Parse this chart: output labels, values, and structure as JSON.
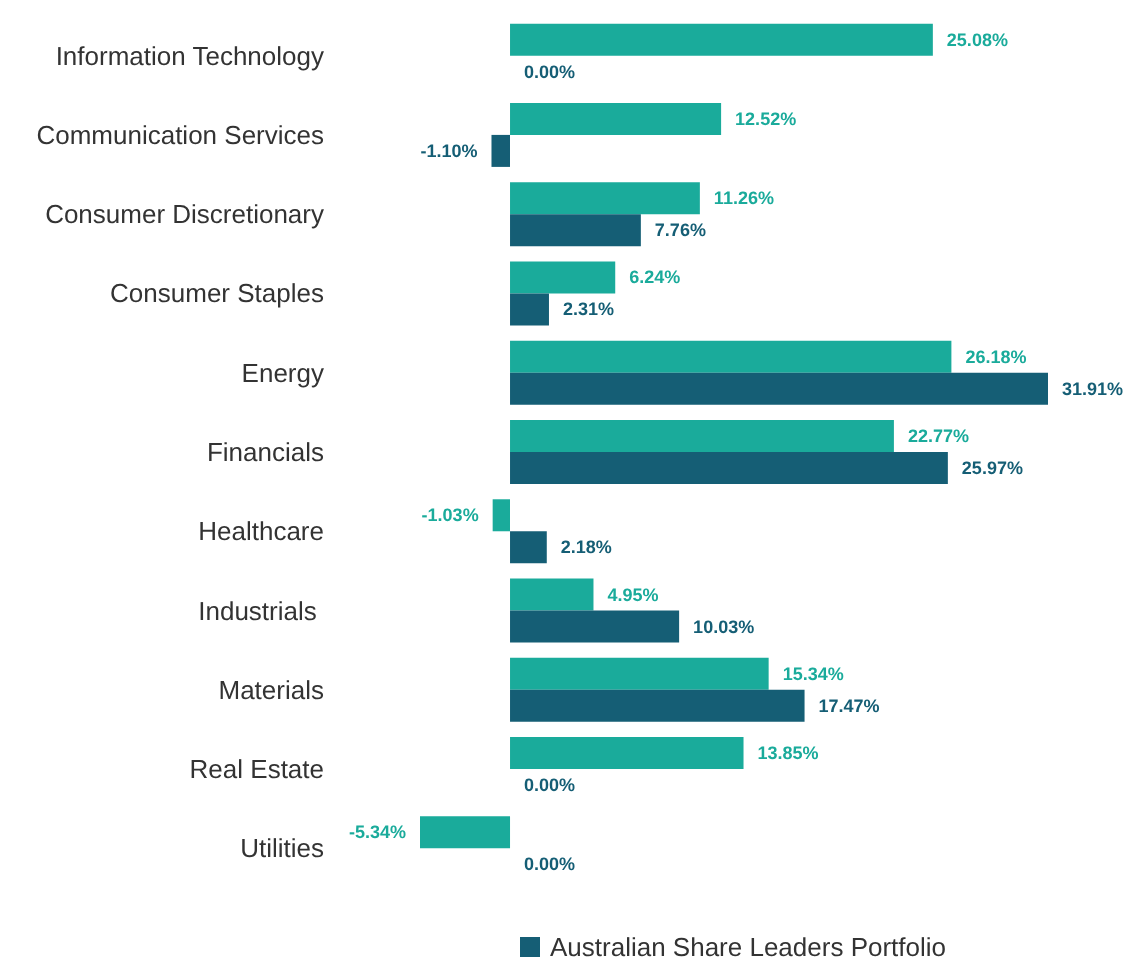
{
  "chart_data": {
    "type": "bar",
    "orientation": "horizontal",
    "data_labels": true,
    "legend": "bottom",
    "grid": false,
    "categories": [
      "Information Technology",
      "Communication Services",
      "Consumer Discretionary",
      "Consumer Staples",
      "Energy",
      "Financials",
      "Healthcare",
      "Industrials ",
      "Materials",
      "Real Estate",
      "Utilities"
    ],
    "series": [
      {
        "color": "#1aab9b",
        "values": [
          25.08,
          12.52,
          11.26,
          6.24,
          26.18,
          22.77,
          -1.03,
          4.95,
          15.34,
          13.85,
          -5.34
        ],
        "value_labels": [
          "25.08%",
          "12.52%",
          "11.26%",
          "6.24%",
          "26.18%",
          "22.77%",
          "-1.03%",
          "4.95%",
          "15.34%",
          "13.85%",
          "-5.34%"
        ]
      },
      {
        "name": "Australian Share Leaders Portfolio",
        "color": "#155e75",
        "values": [
          0,
          -1.1,
          7.76,
          2.31,
          31.91,
          25.97,
          2.18,
          10.03,
          17.47,
          0,
          0
        ],
        "value_labels": [
          "0.00%",
          "-1.10%",
          "7.76%",
          "2.31%",
          "31.91%",
          "25.97%",
          "2.18%",
          "10.03%",
          "17.47%",
          "0.00%",
          "0.00%"
        ]
      }
    ]
  }
}
